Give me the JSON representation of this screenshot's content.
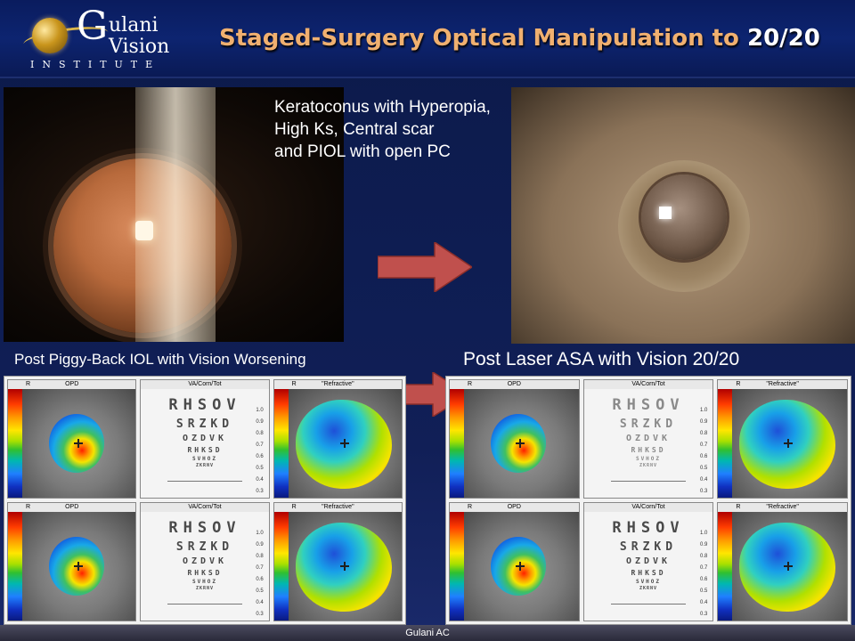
{
  "logo": {
    "letter": "G",
    "top": "ulani",
    "bottom": "Vision",
    "sub": "INSTITUTE"
  },
  "title": {
    "main": "Staged-Surgery Optical Manipulation to ",
    "highlight": "20/20"
  },
  "captions": {
    "top": [
      "Keratoconus with Hyperopia,",
      "High Ks, Central scar",
      "and PIOL with open PC"
    ],
    "left": "Post Piggy-Back IOL with Vision Worsening",
    "right": "Post Laser ASA with Vision 20/20"
  },
  "map_labels": {
    "eye": "R",
    "opd": "OPD",
    "va": "VA/Corn/Tot",
    "refractive": "\"Refractive\""
  },
  "chart_rows": {
    "before": [
      "RHSOV",
      "SRZKD",
      "OZDVK",
      "RHKSD",
      "SVHOZ",
      "ZKRNV"
    ],
    "after_top": [
      "RHSOV",
      "SRZKD",
      "OZDVK",
      "RHKSD",
      "SVHOZ",
      "ZKRNV"
    ],
    "after_bottom": [
      "RHSOV",
      "SRZKD",
      "OZDVK",
      "RHKSD",
      "SVHOZ",
      "ZKRNV"
    ]
  },
  "chart_side": [
    "1.0",
    "0.9",
    "0.8",
    "0.7",
    "0.6",
    "0.5",
    "0.4",
    "0.3"
  ],
  "footer": "Gulani AC",
  "colors": {
    "title": "#f0b070",
    "arrow": "#c0504d",
    "background": "#0e1d52"
  }
}
